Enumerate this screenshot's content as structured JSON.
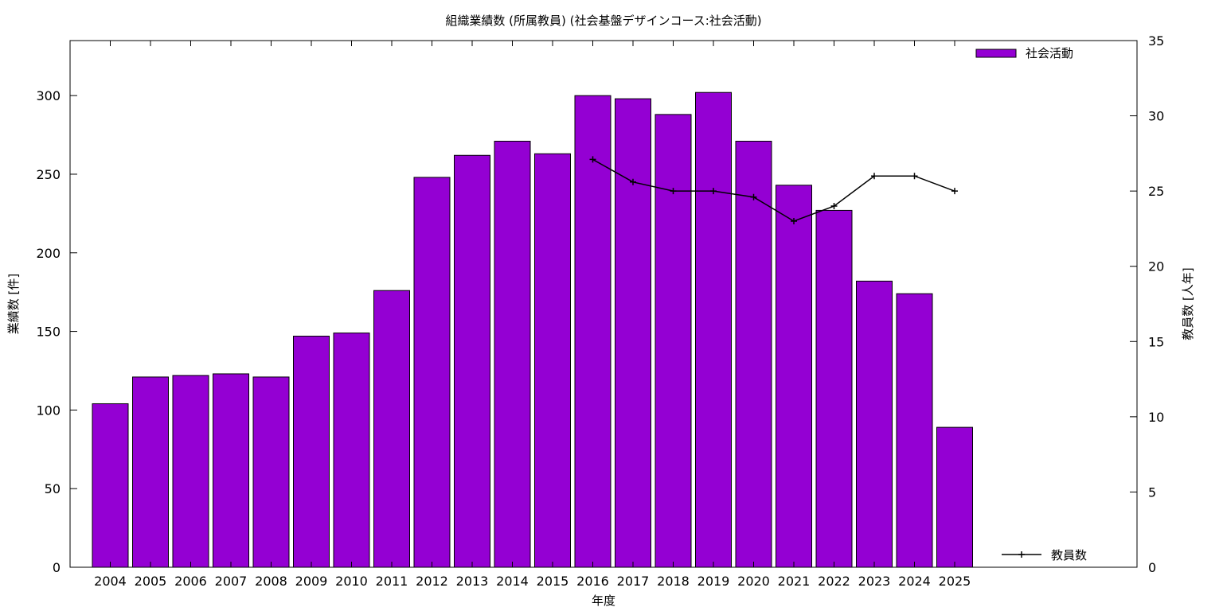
{
  "chart_data": {
    "type": "bar",
    "title": "組織業績数 (所属教員) (社会基盤デザインコース:社会活動)",
    "xlabel": "年度",
    "ylabel": "業績数 [件]",
    "y2label": "教員数 [人年]",
    "categories": [
      "2004",
      "2005",
      "2006",
      "2007",
      "2008",
      "2009",
      "2010",
      "2011",
      "2012",
      "2013",
      "2014",
      "2015",
      "2016",
      "2017",
      "2018",
      "2019",
      "2020",
      "2021",
      "2022",
      "2023",
      "2024",
      "2025"
    ],
    "series": [
      {
        "name": "社会活動",
        "kind": "bar",
        "axis": "y",
        "color": "#9400d3",
        "values": [
          104,
          121,
          122,
          123,
          121,
          147,
          149,
          176,
          248,
          262,
          271,
          263,
          300,
          298,
          288,
          302,
          271,
          243,
          227,
          182,
          174,
          89
        ]
      },
      {
        "name": "教員数",
        "kind": "line",
        "axis": "y2",
        "color": "#000000",
        "values": [
          null,
          null,
          null,
          null,
          null,
          null,
          null,
          null,
          null,
          null,
          null,
          null,
          27.1,
          25.6,
          25.0,
          25.0,
          24.6,
          23.0,
          24.0,
          26.0,
          26.0,
          25.0
        ]
      }
    ],
    "ylim": [
      0,
      335
    ],
    "y2lim": [
      0,
      35
    ],
    "yticks": [
      0,
      50,
      100,
      150,
      200,
      250,
      300
    ],
    "y2ticks": [
      0,
      5,
      10,
      15,
      20,
      25,
      30,
      35
    ],
    "grid": false,
    "legend": [
      "top-right",
      "bottom-right"
    ]
  }
}
